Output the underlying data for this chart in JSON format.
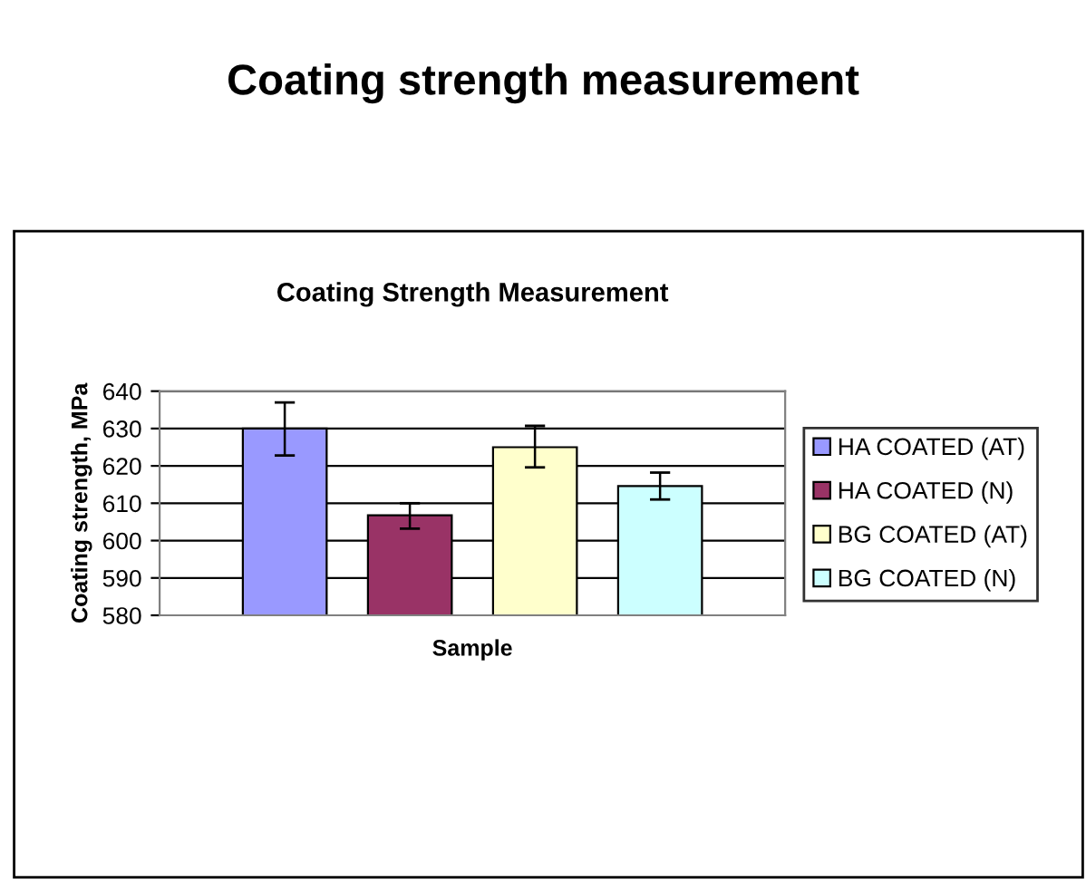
{
  "chart_data": {
    "type": "bar",
    "title": "Coating strength measurement",
    "subtitle": "Coating Strength Measurement",
    "xlabel": "Sample",
    "ylabel": "Coating strength, MPa",
    "categories": [
      null
    ],
    "series": [
      {
        "name": "HA COATED (AT)",
        "color": "#9999ff",
        "values": [
          630
        ],
        "errors": [
          [
            622.8,
            637
          ]
        ]
      },
      {
        "name": "HA COATED (N)",
        "color": "#993366",
        "values": [
          606.8
        ],
        "errors": [
          [
            603.2,
            610
          ]
        ]
      },
      {
        "name": "BG COATED (AT)",
        "color": "#ffffcc",
        "values": [
          625
        ],
        "errors": [
          [
            619.6,
            630.7
          ]
        ]
      },
      {
        "name": "BG COATED (N)",
        "color": "#ccffff",
        "values": [
          614.6
        ],
        "errors": [
          [
            611,
            618.2
          ]
        ]
      }
    ],
    "ylim": [
      580,
      640
    ],
    "yticks": [
      580,
      590,
      600,
      610,
      620,
      630,
      640
    ],
    "grid": "y",
    "legend": "right"
  }
}
